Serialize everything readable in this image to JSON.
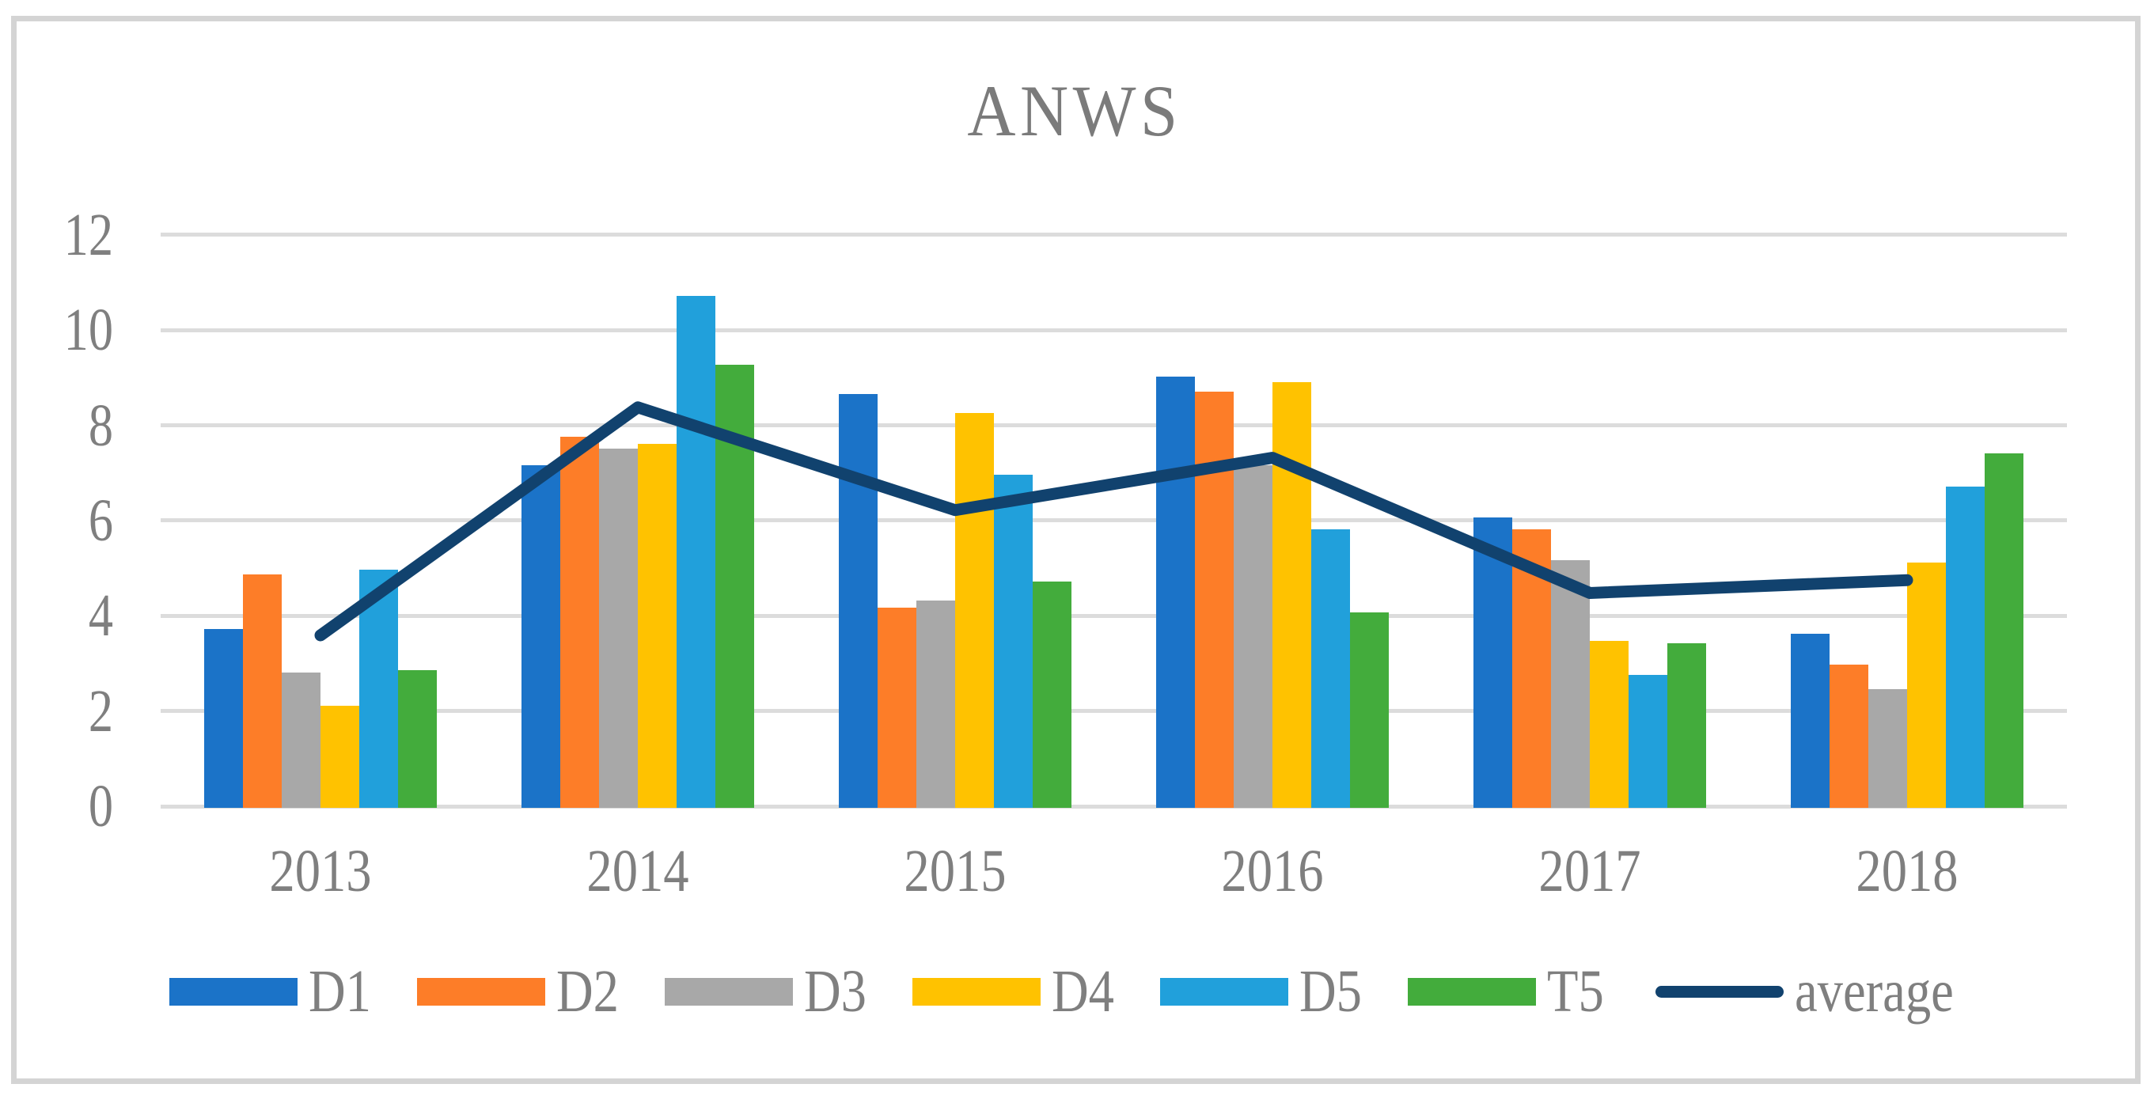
{
  "window": {
    "background_color": "#FFFFFF",
    "frame_border_color": "#D4D4D4"
  },
  "chart_data": {
    "type": "bar",
    "subtype": "combo-bar-line",
    "title": "ANWS",
    "title_color": "#7B7B7B",
    "text_color": "#7F7F7F",
    "categories": [
      "2013",
      "2014",
      "2015",
      "2016",
      "2017",
      "2018"
    ],
    "series": [
      {
        "name": "D1",
        "kind": "bar",
        "color": "#1B73C8",
        "values": [
          3.75,
          7.2,
          8.7,
          9.05,
          6.1,
          3.65
        ]
      },
      {
        "name": "D2",
        "kind": "bar",
        "color": "#FD7D28",
        "values": [
          4.9,
          7.8,
          4.2,
          8.75,
          5.85,
          3.0
        ]
      },
      {
        "name": "D3",
        "kind": "bar",
        "color": "#A8A8A8",
        "values": [
          2.85,
          7.55,
          4.35,
          7.2,
          5.2,
          2.5
        ]
      },
      {
        "name": "D4",
        "kind": "bar",
        "color": "#FFC200",
        "values": [
          2.15,
          7.65,
          8.3,
          8.95,
          3.5,
          5.15
        ]
      },
      {
        "name": "D5",
        "kind": "bar",
        "color": "#21A0DB",
        "values": [
          5.0,
          10.75,
          7.0,
          5.85,
          2.8,
          6.75
        ]
      },
      {
        "name": "T5",
        "kind": "bar",
        "color": "#43AC3C",
        "values": [
          2.9,
          9.3,
          4.75,
          4.1,
          3.45,
          7.45
        ]
      },
      {
        "name": "average",
        "kind": "line",
        "color": "#11426E",
        "values": [
          3.59,
          8.38,
          6.22,
          7.32,
          4.48,
          4.75
        ]
      }
    ],
    "y_axis": {
      "min": 0,
      "max": 12,
      "ticks": [
        0,
        2,
        4,
        6,
        8,
        10,
        12
      ],
      "grid": true,
      "grid_color": "#DCDCDC"
    },
    "x_axis": {
      "tick_labels": [
        "2013",
        "2014",
        "2015",
        "2016",
        "2017",
        "2018"
      ]
    },
    "legend": {
      "position": "bottom",
      "entries": [
        "D1",
        "D2",
        "D3",
        "D4",
        "D5",
        "T5",
        "average"
      ]
    }
  }
}
